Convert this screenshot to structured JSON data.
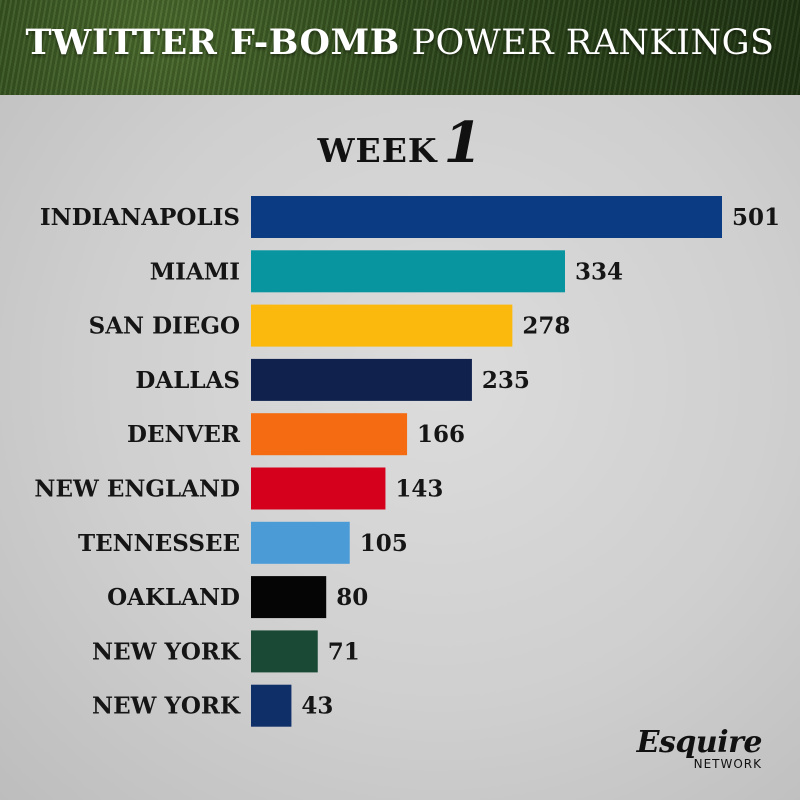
{
  "header": {
    "title_bold": "TWITTER F-BOMB",
    "title_rest": "POWER RANKINGS"
  },
  "week": {
    "label": "WEEK",
    "number": "1"
  },
  "logo": {
    "brand": "Esquire",
    "sub": "NETWORK"
  },
  "chart_data": {
    "type": "bar",
    "orientation": "horizontal",
    "categories": [
      "INDIANAPOLIS",
      "MIAMI",
      "SAN DIEGO",
      "DALLAS",
      "DENVER",
      "NEW ENGLAND",
      "TENNESSEE",
      "OAKLAND",
      "NEW YORK",
      "NEW YORK"
    ],
    "values": [
      501,
      334,
      278,
      235,
      166,
      143,
      105,
      80,
      71,
      43
    ],
    "colors": [
      "#0b3b82",
      "#0895a0",
      "#fbb90d",
      "#10214d",
      "#f56b12",
      "#d5001c",
      "#4a9bd6",
      "#050505",
      "#1a4a36",
      "#0f2f69"
    ],
    "bold_categories": [
      0
    ],
    "title": "",
    "xlabel": "",
    "ylabel": "",
    "grid": false
  }
}
